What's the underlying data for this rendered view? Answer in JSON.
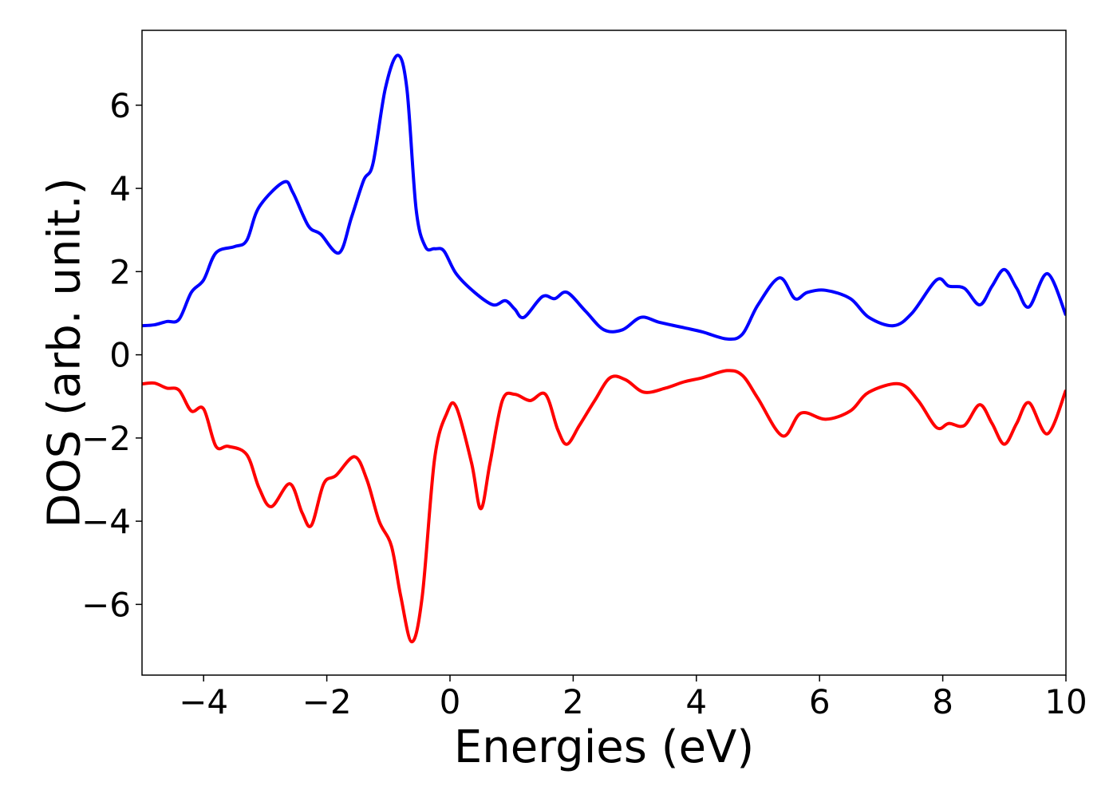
{
  "chart_data": {
    "type": "line",
    "title": "",
    "xlabel": "Energies (eV)",
    "ylabel": "DOS (arb. unit.)",
    "xlim": [
      -5,
      10
    ],
    "ylim": [
      -7.7,
      7.8
    ],
    "grid": false,
    "legend": "none",
    "x_ticks": [
      -4,
      -2,
      0,
      2,
      4,
      6,
      8,
      10
    ],
    "x_tick_labels": [
      "−4",
      "−2",
      "0",
      "2",
      "4",
      "6",
      "8",
      "10"
    ],
    "y_ticks": [
      6,
      4,
      2,
      0,
      -2,
      -4,
      -6
    ],
    "y_tick_labels": [
      "6",
      "4",
      "2",
      "0",
      "−2",
      "−4",
      "−6"
    ],
    "series": [
      {
        "color": "#0000ff",
        "points": [
          [
            -5.0,
            0.7
          ],
          [
            -4.8,
            0.72
          ],
          [
            -4.6,
            0.8
          ],
          [
            -4.4,
            0.85
          ],
          [
            -4.2,
            1.5
          ],
          [
            -4.0,
            1.8
          ],
          [
            -3.8,
            2.45
          ],
          [
            -3.5,
            2.6
          ],
          [
            -3.3,
            2.75
          ],
          [
            -3.1,
            3.55
          ],
          [
            -2.7,
            4.15
          ],
          [
            -2.55,
            3.9
          ],
          [
            -2.3,
            3.1
          ],
          [
            -2.1,
            2.9
          ],
          [
            -1.8,
            2.45
          ],
          [
            -1.6,
            3.3
          ],
          [
            -1.4,
            4.2
          ],
          [
            -1.25,
            4.6
          ],
          [
            -1.05,
            6.4
          ],
          [
            -0.85,
            7.2
          ],
          [
            -0.7,
            6.4
          ],
          [
            -0.55,
            3.5
          ],
          [
            -0.4,
            2.6
          ],
          [
            -0.25,
            2.55
          ],
          [
            -0.1,
            2.5
          ],
          [
            0.1,
            1.95
          ],
          [
            0.4,
            1.5
          ],
          [
            0.7,
            1.2
          ],
          [
            0.9,
            1.3
          ],
          [
            1.05,
            1.1
          ],
          [
            1.2,
            0.9
          ],
          [
            1.5,
            1.4
          ],
          [
            1.7,
            1.35
          ],
          [
            1.9,
            1.5
          ],
          [
            2.2,
            1.05
          ],
          [
            2.5,
            0.6
          ],
          [
            2.8,
            0.6
          ],
          [
            3.1,
            0.9
          ],
          [
            3.4,
            0.78
          ],
          [
            3.8,
            0.65
          ],
          [
            4.1,
            0.55
          ],
          [
            4.5,
            0.38
          ],
          [
            4.75,
            0.5
          ],
          [
            5.0,
            1.2
          ],
          [
            5.35,
            1.85
          ],
          [
            5.6,
            1.35
          ],
          [
            5.8,
            1.5
          ],
          [
            6.1,
            1.55
          ],
          [
            6.5,
            1.35
          ],
          [
            6.8,
            0.9
          ],
          [
            7.2,
            0.7
          ],
          [
            7.5,
            1.0
          ],
          [
            7.9,
            1.8
          ],
          [
            8.1,
            1.65
          ],
          [
            8.35,
            1.6
          ],
          [
            8.6,
            1.2
          ],
          [
            8.8,
            1.65
          ],
          [
            9.0,
            2.05
          ],
          [
            9.2,
            1.6
          ],
          [
            9.4,
            1.15
          ],
          [
            9.7,
            1.95
          ],
          [
            10.0,
            0.95
          ]
        ]
      },
      {
        "color": "#ff0000",
        "points": [
          [
            -5.0,
            -0.7
          ],
          [
            -4.8,
            -0.68
          ],
          [
            -4.6,
            -0.8
          ],
          [
            -4.4,
            -0.85
          ],
          [
            -4.2,
            -1.35
          ],
          [
            -4.0,
            -1.3
          ],
          [
            -3.8,
            -2.2
          ],
          [
            -3.6,
            -2.2
          ],
          [
            -3.3,
            -2.4
          ],
          [
            -3.1,
            -3.2
          ],
          [
            -2.9,
            -3.65
          ],
          [
            -2.6,
            -3.1
          ],
          [
            -2.4,
            -3.8
          ],
          [
            -2.25,
            -4.1
          ],
          [
            -2.05,
            -3.1
          ],
          [
            -1.85,
            -2.9
          ],
          [
            -1.55,
            -2.45
          ],
          [
            -1.35,
            -3.0
          ],
          [
            -1.15,
            -4.0
          ],
          [
            -0.95,
            -4.6
          ],
          [
            -0.8,
            -5.8
          ],
          [
            -0.62,
            -6.9
          ],
          [
            -0.45,
            -5.8
          ],
          [
            -0.25,
            -2.5
          ],
          [
            -0.05,
            -1.4
          ],
          [
            0.1,
            -1.25
          ],
          [
            0.35,
            -2.6
          ],
          [
            0.5,
            -3.7
          ],
          [
            0.65,
            -2.6
          ],
          [
            0.85,
            -1.1
          ],
          [
            1.05,
            -0.95
          ],
          [
            1.3,
            -1.1
          ],
          [
            1.55,
            -0.95
          ],
          [
            1.75,
            -1.8
          ],
          [
            1.9,
            -2.15
          ],
          [
            2.1,
            -1.7
          ],
          [
            2.35,
            -1.1
          ],
          [
            2.6,
            -0.55
          ],
          [
            2.85,
            -0.6
          ],
          [
            3.15,
            -0.9
          ],
          [
            3.5,
            -0.8
          ],
          [
            3.8,
            -0.65
          ],
          [
            4.1,
            -0.55
          ],
          [
            4.5,
            -0.38
          ],
          [
            4.75,
            -0.5
          ],
          [
            5.0,
            -1.05
          ],
          [
            5.4,
            -1.95
          ],
          [
            5.7,
            -1.4
          ],
          [
            6.1,
            -1.55
          ],
          [
            6.5,
            -1.35
          ],
          [
            6.8,
            -0.9
          ],
          [
            7.3,
            -0.7
          ],
          [
            7.6,
            -1.1
          ],
          [
            7.9,
            -1.75
          ],
          [
            8.1,
            -1.65
          ],
          [
            8.35,
            -1.7
          ],
          [
            8.6,
            -1.2
          ],
          [
            8.8,
            -1.65
          ],
          [
            9.0,
            -2.15
          ],
          [
            9.2,
            -1.65
          ],
          [
            9.4,
            -1.15
          ],
          [
            9.7,
            -1.9
          ],
          [
            10.0,
            -0.85
          ]
        ]
      }
    ]
  }
}
